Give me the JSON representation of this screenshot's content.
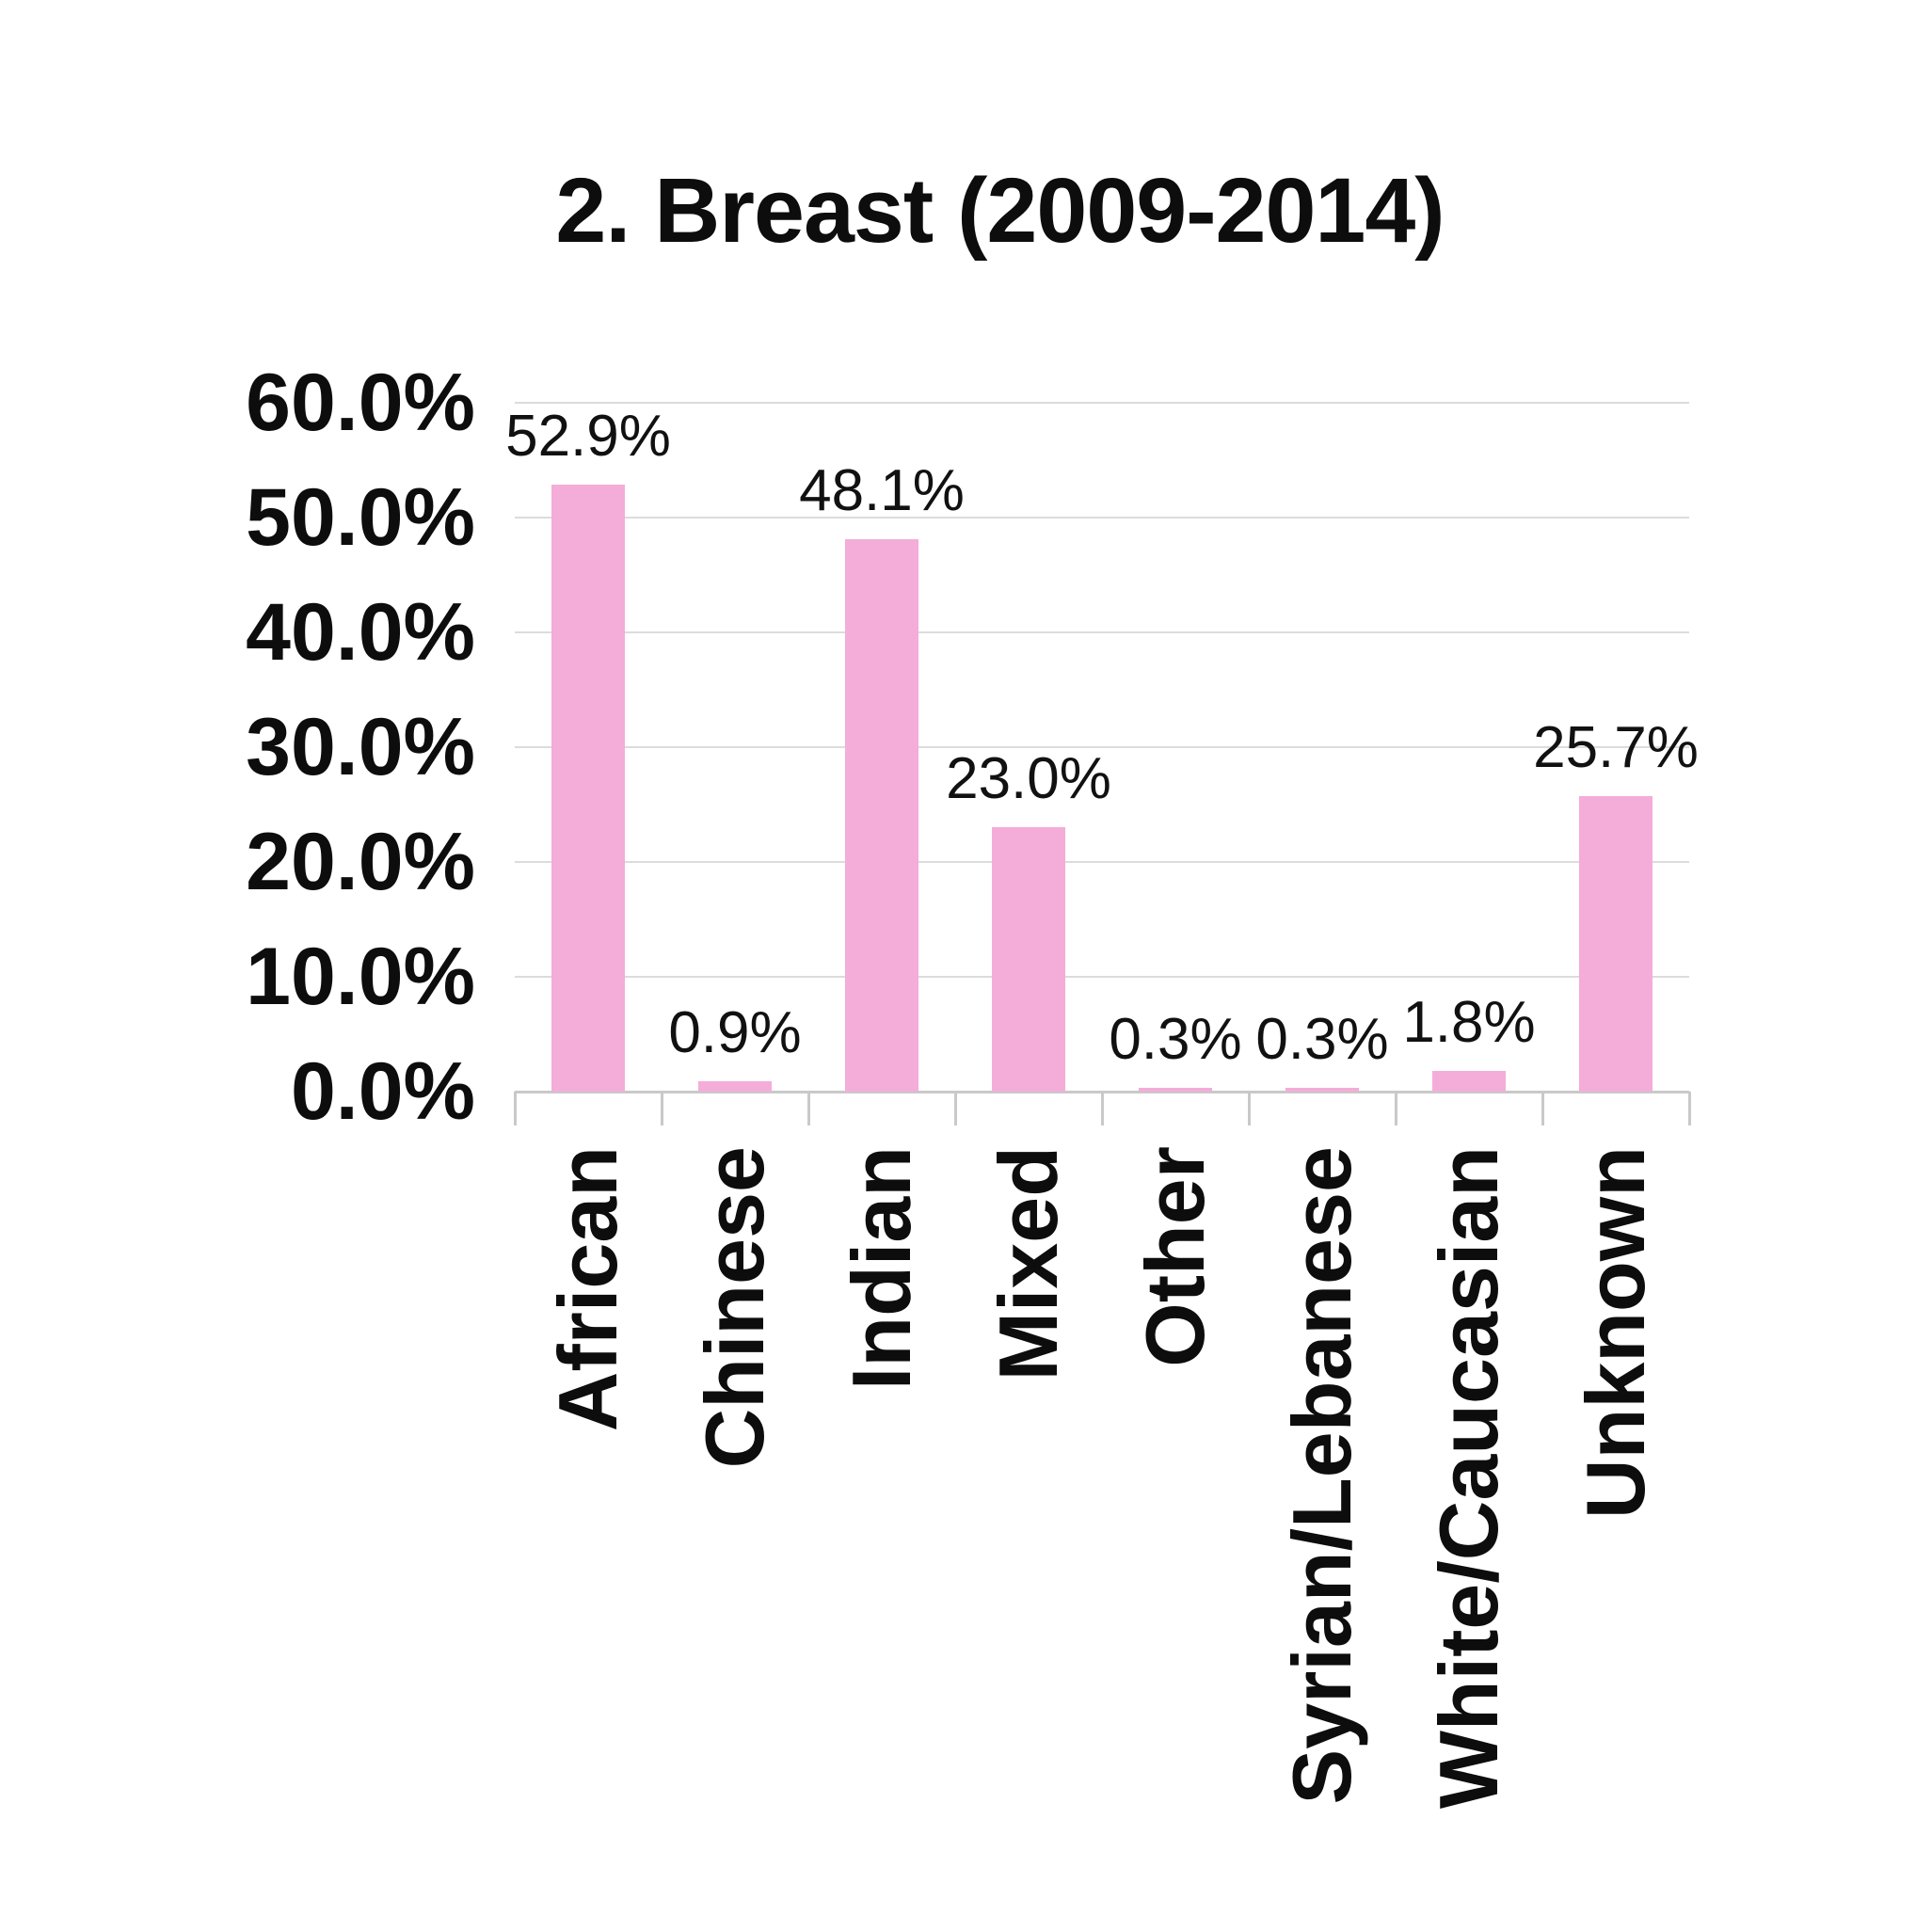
{
  "title": "2. Breast (2009-2014)",
  "chart_data": {
    "type": "bar",
    "title": "2. Breast (2009-2014)",
    "categories": [
      "African",
      "Chinese",
      "Indian",
      "Mixed",
      "Other",
      "Syrian/Lebanese",
      "White/Caucasian",
      "Unknown"
    ],
    "values": [
      52.9,
      0.9,
      48.1,
      23.0,
      0.3,
      0.3,
      1.8,
      25.7
    ],
    "value_labels": [
      "52.9%",
      "0.9%",
      "48.1%",
      "23.0%",
      "0.3%",
      "0.3%",
      "1.8%",
      "25.7%"
    ],
    "y_tick_labels": [
      "60.0%",
      "50.0%",
      "40.0%",
      "30.0%",
      "20.0%",
      "10.0%",
      "0.0%"
    ],
    "xlabel": "",
    "ylabel": "",
    "ylim": [
      0,
      60
    ],
    "grid": true,
    "legend_position": "none",
    "bar_color": "#f3add8",
    "gridline_color": "#dcdcdc",
    "axis_color": "#c9c9c9",
    "text_color": "#0d0d0d"
  }
}
